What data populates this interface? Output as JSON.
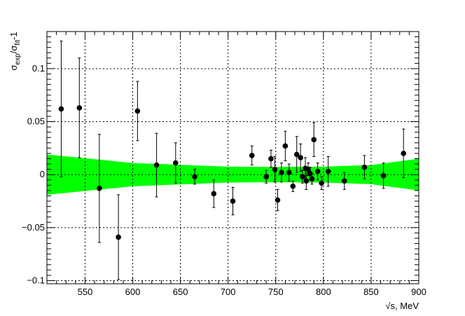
{
  "chart_data": {
    "type": "scatter",
    "title": "",
    "xlabel": "√s, MeV",
    "ylabel": {
      "sigma1": "σ",
      "sub1": "exp",
      "slash": "/",
      "sigma2": "σ",
      "sub2": "fit",
      "tail": "-1"
    },
    "xlim": [
      510,
      900
    ],
    "ylim": [
      -0.103,
      0.135
    ],
    "grid": true,
    "x_ticks": [
      550,
      600,
      650,
      700,
      750,
      800,
      850,
      900
    ],
    "x_tick_labels": [
      "550",
      "600",
      "650",
      "700",
      "750",
      "800",
      "850",
      "900"
    ],
    "y_ticks": [
      -0.1,
      -0.05,
      0,
      0.05,
      0.1
    ],
    "y_tick_labels": [
      "−0.1",
      "−0.05",
      "0",
      "0.05",
      "0.1"
    ],
    "band": {
      "color": "#00ff00",
      "x": [
        510,
        600,
        700,
        750,
        800,
        850,
        900
      ],
      "lower": [
        -0.019,
        -0.011,
        -0.0075,
        -0.0072,
        -0.0075,
        -0.009,
        -0.015
      ],
      "upper": [
        0.019,
        0.011,
        0.0075,
        0.0072,
        0.0075,
        0.009,
        0.015
      ]
    },
    "points_color": "#000000",
    "points": [
      {
        "x": 525,
        "y": 0.062,
        "err": 0.064
      },
      {
        "x": 544,
        "y": 0.063,
        "err": 0.047
      },
      {
        "x": 565,
        "y": -0.013,
        "err": 0.051
      },
      {
        "x": 585,
        "y": -0.059,
        "err": 0.04
      },
      {
        "x": 605,
        "y": 0.06,
        "err": 0.028
      },
      {
        "x": 625,
        "y": 0.009,
        "err": 0.03
      },
      {
        "x": 645,
        "y": 0.011,
        "err": 0.019
      },
      {
        "x": 665,
        "y": -0.002,
        "err": 0.007
      },
      {
        "x": 685,
        "y": -0.018,
        "err": 0.013
      },
      {
        "x": 705,
        "y": -0.025,
        "err": 0.013
      },
      {
        "x": 725,
        "y": 0.018,
        "err": 0.009
      },
      {
        "x": 740,
        "y": -0.002,
        "err": 0.006
      },
      {
        "x": 745,
        "y": 0.015,
        "err": 0.008
      },
      {
        "x": 749,
        "y": 0.005,
        "err": 0.012
      },
      {
        "x": 752,
        "y": -0.024,
        "err": 0.01
      },
      {
        "x": 756,
        "y": 0.002,
        "err": 0.009
      },
      {
        "x": 760,
        "y": 0.027,
        "err": 0.014
      },
      {
        "x": 764,
        "y": 0.002,
        "err": 0.008
      },
      {
        "x": 768,
        "y": -0.011,
        "err": 0.005
      },
      {
        "x": 772,
        "y": 0.019,
        "err": 0.017
      },
      {
        "x": 776,
        "y": 0.016,
        "err": 0.013
      },
      {
        "x": 778,
        "y": -0.002,
        "err": 0.006
      },
      {
        "x": 781,
        "y": 0.006,
        "err": 0.01
      },
      {
        "x": 782,
        "y": -0.006,
        "err": 0.008
      },
      {
        "x": 784,
        "y": 0.005,
        "err": 0.006
      },
      {
        "x": 786,
        "y": 0.001,
        "err": 0.006
      },
      {
        "x": 788,
        "y": -0.004,
        "err": 0.005
      },
      {
        "x": 790,
        "y": 0.033,
        "err": 0.016
      },
      {
        "x": 794,
        "y": 0.003,
        "err": 0.008
      },
      {
        "x": 798,
        "y": -0.008,
        "err": 0.006
      },
      {
        "x": 805,
        "y": 0.003,
        "err": 0.014
      },
      {
        "x": 822,
        "y": -0.006,
        "err": 0.008
      },
      {
        "x": 843,
        "y": 0.007,
        "err": 0.011
      },
      {
        "x": 863,
        "y": -0.001,
        "err": 0.012
      },
      {
        "x": 884,
        "y": 0.02,
        "err": 0.023
      }
    ]
  }
}
